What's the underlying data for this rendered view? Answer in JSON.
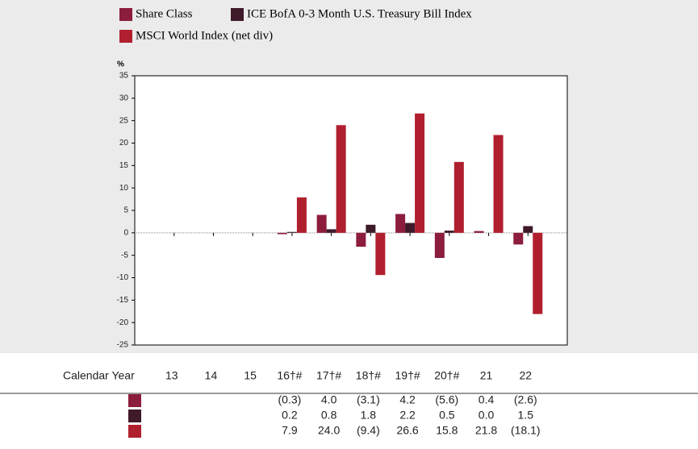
{
  "chart_data": {
    "type": "bar",
    "y_label": "%",
    "table_label": "Calendar Year",
    "categories": [
      "13",
      "14",
      "15",
      "16†#",
      "17†#",
      "18†#",
      "19†#",
      "20†#",
      "21",
      "22"
    ],
    "series": [
      {
        "name": "Share Class",
        "color": "#8c1d3c",
        "values": [
          null,
          null,
          null,
          -0.3,
          4.0,
          -3.1,
          4.2,
          -5.6,
          0.4,
          -2.6
        ],
        "value_labels": [
          null,
          null,
          null,
          "(0.3)",
          "4.0",
          "(3.1)",
          "4.2",
          "(5.6)",
          "0.4",
          "(2.6)"
        ]
      },
      {
        "name": "ICE BofA 0-3 Month U.S. Treasury Bill Index",
        "color": "#3e1a2b",
        "values": [
          null,
          null,
          null,
          0.2,
          0.8,
          1.8,
          2.2,
          0.5,
          0.0,
          1.5
        ],
        "value_labels": [
          null,
          null,
          null,
          "0.2",
          "0.8",
          "1.8",
          "2.2",
          "0.5",
          "0.0",
          "1.5"
        ]
      },
      {
        "name": "MSCI World Index (net div)",
        "color": "#b01f2e",
        "values": [
          null,
          null,
          null,
          7.9,
          24.0,
          -9.4,
          26.6,
          15.8,
          21.8,
          -18.1
        ],
        "value_labels": [
          null,
          null,
          null,
          "7.9",
          "24.0",
          "(9.4)",
          "26.6",
          "15.8",
          "21.8",
          "(18.1)"
        ]
      }
    ],
    "ylim": [
      -25,
      35
    ],
    "yticks": [
      -25,
      -20,
      -15,
      -10,
      -5,
      0,
      5,
      10,
      15,
      20,
      25,
      30,
      35
    ],
    "legend": "top"
  }
}
